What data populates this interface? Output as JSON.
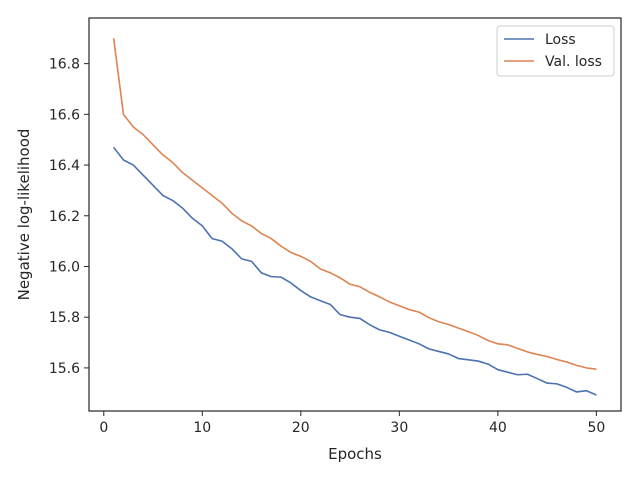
{
  "chart_data": {
    "type": "line",
    "title": "",
    "xlabel": "Epochs",
    "ylabel": "Negative log-likelihood",
    "xlim": [
      -1.5,
      52.5
    ],
    "ylim": [
      15.43,
      16.98
    ],
    "xticks": [
      0,
      10,
      20,
      30,
      40,
      50
    ],
    "yticks": [
      15.6,
      15.8,
      16.0,
      16.2,
      16.4,
      16.6,
      16.8
    ],
    "grid": false,
    "legend_position": "top-right",
    "x": [
      1,
      2,
      3,
      4,
      5,
      6,
      7,
      8,
      9,
      10,
      11,
      12,
      13,
      14,
      15,
      16,
      17,
      18,
      19,
      20,
      21,
      22,
      23,
      24,
      25,
      26,
      27,
      28,
      29,
      30,
      31,
      32,
      33,
      34,
      35,
      36,
      37,
      38,
      39,
      40,
      41,
      42,
      43,
      44,
      45,
      46,
      47,
      48,
      49,
      50
    ],
    "series": [
      {
        "name": "Loss",
        "color": "#4c72b0",
        "values": [
          16.47,
          16.42,
          16.4,
          16.36,
          16.32,
          16.28,
          16.26,
          16.23,
          16.19,
          16.16,
          16.11,
          16.1,
          16.07,
          16.03,
          16.02,
          15.975,
          15.96,
          15.958,
          15.935,
          15.905,
          15.88,
          15.865,
          15.85,
          15.81,
          15.8,
          15.795,
          15.77,
          15.75,
          15.74,
          15.725,
          15.71,
          15.695,
          15.675,
          15.665,
          15.655,
          15.637,
          15.632,
          15.627,
          15.615,
          15.593,
          15.583,
          15.573,
          15.575,
          15.558,
          15.54,
          15.537,
          15.523,
          15.505,
          15.51,
          15.493
        ]
      },
      {
        "name": "Val. loss",
        "color": "#dd8452",
        "values": [
          16.9,
          16.6,
          16.55,
          16.52,
          16.48,
          16.44,
          16.41,
          16.37,
          16.34,
          16.31,
          16.28,
          16.25,
          16.21,
          16.18,
          16.16,
          16.13,
          16.11,
          16.08,
          16.055,
          16.04,
          16.02,
          15.99,
          15.975,
          15.955,
          15.93,
          15.92,
          15.898,
          15.88,
          15.86,
          15.845,
          15.83,
          15.82,
          15.798,
          15.782,
          15.771,
          15.757,
          15.743,
          15.728,
          15.708,
          15.695,
          15.691,
          15.677,
          15.663,
          15.653,
          15.645,
          15.633,
          15.623,
          15.61,
          15.6,
          15.595
        ]
      }
    ]
  }
}
